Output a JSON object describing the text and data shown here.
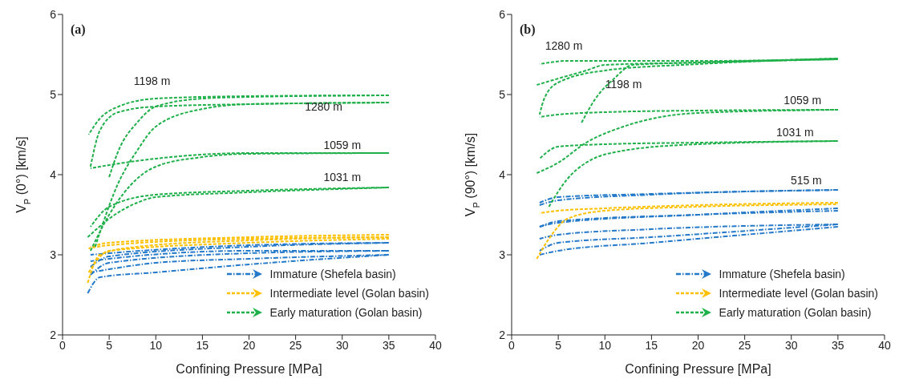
{
  "chart_data": [
    {
      "type": "line",
      "title": "(a)",
      "xlabel": "Confining Pressure [MPa]",
      "ylabel": "V$_{P}$ (0°)  [km/s]",
      "xlim": [
        0,
        40
      ],
      "ylim": [
        2,
        6
      ],
      "xticks": [
        0,
        5,
        10,
        15,
        20,
        25,
        30,
        35,
        40
      ],
      "yticks": [
        2,
        3,
        4,
        5,
        6
      ],
      "legend": "bottom right",
      "annotations": [
        "1198 m",
        "1280 m",
        "1059 m",
        "1031 m"
      ],
      "series": [
        {
          "name": "Immature (Shefela basin)",
          "color": "#2479c9",
          "line_style": "dashdot",
          "x": [
            2.7,
            4,
            10,
            20,
            35
          ],
          "values": [
            2.52,
            2.72,
            2.78,
            2.88,
            3.0
          ]
        },
        {
          "color": "#2479c9",
          "line_style": "dashdot",
          "x": [
            35,
            20,
            10,
            5,
            3
          ],
          "values": [
            3.0,
            2.95,
            2.9,
            2.82,
            2.78
          ]
        },
        {
          "color": "#2479c9",
          "line_style": "dashdot",
          "x": [
            3,
            5,
            20,
            35
          ],
          "values": [
            2.75,
            2.9,
            3.02,
            3.05
          ]
        },
        {
          "color": "#2479c9",
          "line_style": "dashdot",
          "x": [
            35,
            20,
            5,
            3
          ],
          "values": [
            3.05,
            3.05,
            2.95,
            2.92
          ]
        },
        {
          "color": "#2479c9",
          "line_style": "dashdot",
          "x": [
            3,
            5,
            20,
            35
          ],
          "values": [
            2.85,
            2.98,
            3.1,
            3.15
          ]
        },
        {
          "color": "#2479c9",
          "line_style": "dashdot",
          "x": [
            35,
            20,
            5,
            3
          ],
          "values": [
            3.15,
            3.12,
            3.02,
            3.0
          ]
        },
        {
          "name": "Intermediate level (Golan basin)",
          "color": "#ffc000",
          "line_style": "dashed",
          "x": [
            2.7,
            4,
            8,
            20,
            35
          ],
          "values": [
            2.65,
            3.0,
            3.1,
            3.18,
            3.22
          ]
        },
        {
          "color": "#ffc000",
          "line_style": "dashed",
          "x": [
            35,
            20,
            5,
            2.8
          ],
          "values": [
            3.22,
            3.2,
            3.12,
            3.08
          ]
        },
        {
          "color": "#ffc000",
          "line_style": "dashed",
          "x": [
            2.8,
            5,
            20,
            35
          ],
          "values": [
            2.78,
            3.05,
            3.15,
            3.2
          ]
        },
        {
          "color": "#ffc000",
          "line_style": "dashed",
          "x": [
            35,
            20,
            5,
            3
          ],
          "values": [
            3.25,
            3.22,
            3.15,
            3.1
          ]
        },
        {
          "name": "Early maturation (Golan basin)",
          "color": "#1fb04a",
          "line_style": "dashed",
          "x": [
            5,
            6,
            8,
            10,
            15,
            20,
            35
          ],
          "values": [
            3.97,
            4.3,
            4.65,
            4.85,
            4.95,
            4.97,
            4.99
          ]
        },
        {
          "color": "#1fb04a",
          "line_style": "dashed",
          "x": [
            35,
            20,
            10,
            6,
            4,
            2.8
          ],
          "values": [
            4.99,
            4.98,
            4.95,
            4.85,
            4.7,
            4.5
          ]
        },
        {
          "color": "#1fb04a",
          "line_style": "dashed",
          "x": [
            3.5,
            6,
            8,
            10,
            15,
            20,
            35
          ],
          "values": [
            3.1,
            3.9,
            4.3,
            4.6,
            4.82,
            4.88,
            4.9
          ]
        },
        {
          "color": "#1fb04a",
          "line_style": "dashed",
          "x": [
            35,
            20,
            10,
            6,
            4,
            3
          ],
          "values": [
            4.9,
            4.88,
            4.85,
            4.78,
            4.55,
            4.1
          ]
        },
        {
          "color": "#1fb04a",
          "line_style": "dashed",
          "x": [
            3,
            5,
            8,
            10,
            15,
            20,
            35
          ],
          "values": [
            3.05,
            3.5,
            3.95,
            4.1,
            4.22,
            4.26,
            4.27
          ]
        },
        {
          "color": "#1fb04a",
          "line_style": "dashed",
          "x": [
            35,
            20,
            10,
            5,
            3
          ],
          "values": [
            4.27,
            4.27,
            4.2,
            4.12,
            4.08
          ]
        },
        {
          "color": "#1fb04a",
          "line_style": "dashed",
          "x": [
            2.7,
            5,
            8,
            10,
            20,
            35
          ],
          "values": [
            3.22,
            3.45,
            3.65,
            3.72,
            3.78,
            3.84
          ]
        },
        {
          "color": "#1fb04a",
          "line_style": "dashed",
          "x": [
            35,
            20,
            10,
            5,
            3
          ],
          "values": [
            3.84,
            3.8,
            3.75,
            3.6,
            3.35
          ]
        }
      ]
    },
    {
      "type": "line",
      "title": "(b)",
      "xlabel": "Confining Pressure [MPa]",
      "ylabel": "V$_{P}$ (90°) [km/s]",
      "xlim": [
        0,
        40
      ],
      "ylim": [
        2,
        6
      ],
      "xticks": [
        0,
        5,
        10,
        15,
        20,
        25,
        30,
        35,
        40
      ],
      "yticks": [
        2,
        3,
        4,
        5,
        6
      ],
      "legend": "bottom right",
      "annotations": [
        "1280 m",
        "1198 m",
        "1059 m",
        "1031 m",
        "515 m"
      ],
      "series": [
        {
          "name": "Immature (Shefela basin)",
          "color": "#2479c9",
          "line_style": "dashdot",
          "x": [
            3,
            5,
            15,
            35
          ],
          "values": [
            3.62,
            3.68,
            3.75,
            3.81
          ]
        },
        {
          "color": "#2479c9",
          "line_style": "dashdot",
          "x": [
            35,
            15,
            5,
            3
          ],
          "values": [
            3.81,
            3.76,
            3.72,
            3.65
          ]
        },
        {
          "color": "#2479c9",
          "line_style": "dashdot",
          "x": [
            3,
            5,
            20,
            35
          ],
          "values": [
            3.35,
            3.42,
            3.5,
            3.55
          ]
        },
        {
          "color": "#2479c9",
          "line_style": "dashdot",
          "x": [
            35,
            20,
            5,
            3
          ],
          "values": [
            3.58,
            3.5,
            3.4,
            3.35
          ]
        },
        {
          "color": "#2479c9",
          "line_style": "dashdot",
          "x": [
            3,
            5,
            15,
            35
          ],
          "values": [
            3.05,
            3.15,
            3.22,
            3.38
          ]
        },
        {
          "color": "#2479c9",
          "line_style": "dashdot",
          "x": [
            35,
            15,
            5,
            3
          ],
          "values": [
            3.38,
            3.32,
            3.25,
            3.2
          ]
        },
        {
          "color": "#2479c9",
          "line_style": "dashdot",
          "x": [
            3,
            5,
            15,
            35
          ],
          "values": [
            3.0,
            3.05,
            3.15,
            3.35
          ]
        },
        {
          "name": "Intermediate level (Golan basin)",
          "color": "#ffc000",
          "line_style": "dashed",
          "x": [
            2.7,
            4,
            6,
            10,
            20,
            35
          ],
          "values": [
            2.95,
            3.2,
            3.45,
            3.55,
            3.6,
            3.63
          ]
        },
        {
          "color": "#ffc000",
          "line_style": "dashed",
          "x": [
            35,
            20,
            10,
            5,
            3
          ],
          "values": [
            3.65,
            3.62,
            3.58,
            3.55,
            3.52
          ]
        },
        {
          "name": "Early maturation (Golan basin)",
          "color": "#1fb04a",
          "line_style": "dashed",
          "x": [
            2.7,
            5,
            8,
            10,
            20,
            35
          ],
          "values": [
            5.12,
            5.2,
            5.3,
            5.37,
            5.4,
            5.44
          ]
        },
        {
          "color": "#1fb04a",
          "line_style": "dashed",
          "x": [
            35,
            20,
            10,
            6,
            3
          ],
          "values": [
            5.44,
            5.42,
            5.42,
            5.42,
            5.38
          ]
        },
        {
          "color": "#1fb04a",
          "line_style": "dashed",
          "x": [
            7.5,
            9,
            11,
            13,
            20,
            35
          ],
          "values": [
            4.65,
            4.95,
            5.2,
            5.37,
            5.4,
            5.45
          ]
        },
        {
          "color": "#1fb04a",
          "line_style": "dashed",
          "x": [
            35,
            20,
            10,
            5,
            3.5,
            3
          ],
          "values": [
            5.45,
            5.38,
            5.3,
            5.15,
            4.95,
            4.75
          ]
        },
        {
          "color": "#1fb04a",
          "line_style": "dashed",
          "x": [
            2.7,
            5,
            8,
            12,
            20,
            35
          ],
          "values": [
            4.02,
            4.15,
            4.4,
            4.6,
            4.77,
            4.81
          ]
        },
        {
          "color": "#1fb04a",
          "line_style": "dashed",
          "x": [
            35,
            20,
            10,
            5,
            3
          ],
          "values": [
            4.81,
            4.8,
            4.78,
            4.75,
            4.72
          ]
        },
        {
          "color": "#1fb04a",
          "line_style": "dashed",
          "x": [
            4,
            6,
            8,
            12,
            20,
            35
          ],
          "values": [
            3.6,
            3.95,
            4.15,
            4.3,
            4.38,
            4.42
          ]
        },
        {
          "color": "#1fb04a",
          "line_style": "dashed",
          "x": [
            35,
            20,
            10,
            5,
            3
          ],
          "values": [
            4.42,
            4.4,
            4.38,
            4.35,
            4.2
          ]
        }
      ]
    }
  ]
}
